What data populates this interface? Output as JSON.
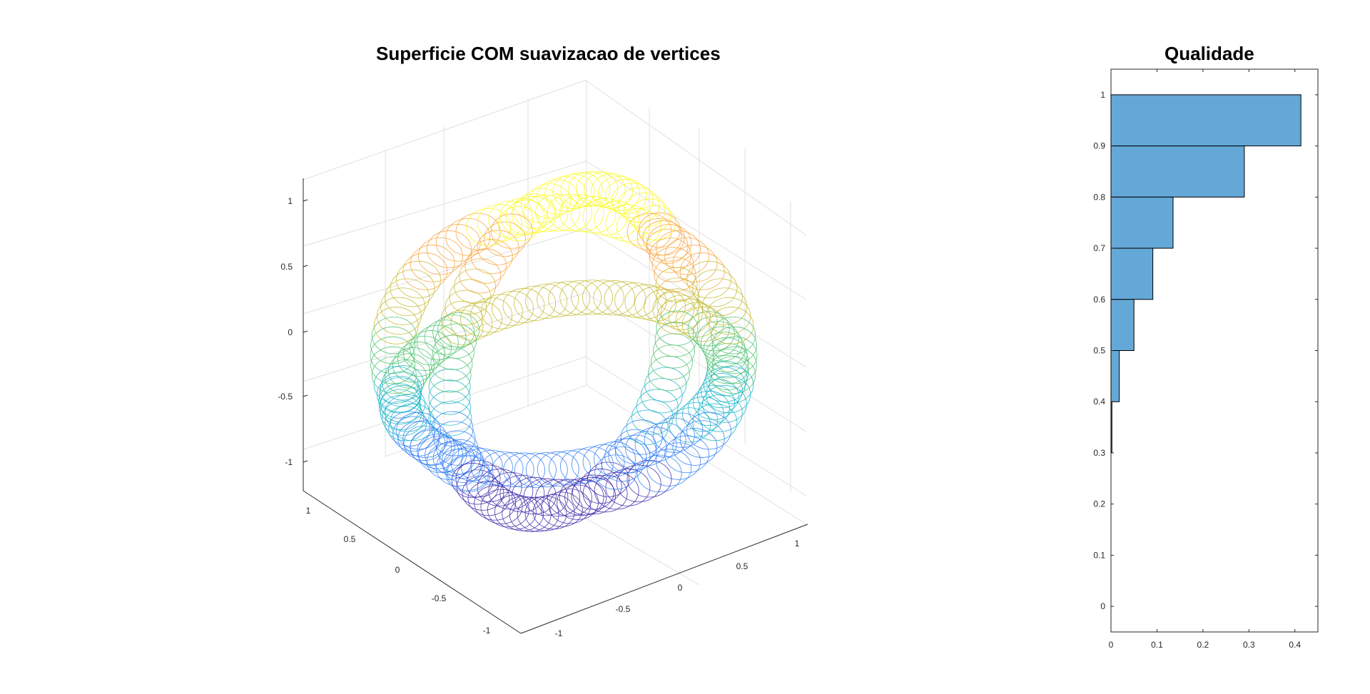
{
  "plots": {
    "surface": {
      "title": "Superficie COM suavizacao de vertices",
      "z_ticks": [
        "1",
        "0.5",
        "0",
        "-0.5",
        "-1"
      ],
      "x_ticks": [
        "1",
        "0.5",
        "0",
        "-0.5",
        "-1"
      ],
      "y_ticks": [
        "-1",
        "-0.5",
        "0",
        "0.5",
        "1"
      ],
      "colormap": [
        "#3e26a8",
        "#2f7cf5",
        "#15b2c9",
        "#4ac16c",
        "#c4b92c",
        "#fba238",
        "#f9fb15"
      ]
    }
  },
  "chart_data": {
    "type": "bar",
    "orientation": "horizontal",
    "title": "Qualidade",
    "categories": [
      0.95,
      0.85,
      0.75,
      0.65,
      0.55,
      0.45,
      0.35
    ],
    "values": [
      0.413,
      0.29,
      0.135,
      0.091,
      0.05,
      0.018,
      0.002
    ],
    "y_ticks": [
      "0",
      "0.1",
      "0.2",
      "0.3",
      "0.4",
      "0.5",
      "0.6",
      "0.7",
      "0.8",
      "0.9",
      "1"
    ],
    "x_ticks": [
      "0",
      "0.1",
      "0.2",
      "0.3",
      "0.4"
    ],
    "xlim": [
      0,
      0.45
    ],
    "ylim": [
      -0.05,
      1.05
    ],
    "bar_color": "#64a8d7",
    "edge_color": "#000000"
  }
}
